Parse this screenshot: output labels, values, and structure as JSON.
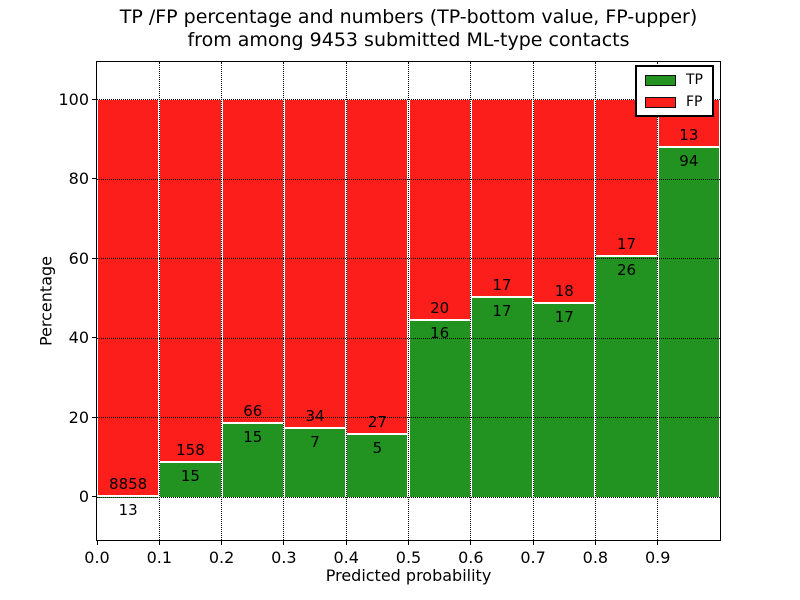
{
  "title": {
    "line1": "TP /FP percentage and numbers (TP-bottom value, FP-upper)",
    "line2": "from among 9453 submitted ML-type contacts"
  },
  "axes": {
    "xlabel": "Predicted probability",
    "ylabel": "Percentage",
    "xticks": [
      "0.0",
      "0.1",
      "0.2",
      "0.3",
      "0.4",
      "0.5",
      "0.6",
      "0.7",
      "0.8",
      "0.9"
    ],
    "yticks": [
      0,
      20,
      40,
      60,
      80,
      100
    ],
    "xlim": [
      0.0,
      1.0
    ],
    "ylim": [
      -10.8,
      109.5
    ],
    "grid": "dotted"
  },
  "legend": {
    "position": "upper right",
    "items": [
      {
        "label": "TP",
        "series_index": 0
      },
      {
        "label": "FP",
        "series_index": 1
      }
    ]
  },
  "chart_data": {
    "type": "bar",
    "stacked": true,
    "bars_normalized_to_percent": true,
    "total_contacts": 9453,
    "bin_edges": [
      0.0,
      0.1,
      0.2,
      0.3,
      0.4,
      0.5,
      0.6,
      0.7,
      0.8,
      0.9,
      1.0
    ],
    "categories": [
      "0.0-0.1",
      "0.1-0.2",
      "0.2-0.3",
      "0.3-0.4",
      "0.4-0.5",
      "0.5-0.6",
      "0.6-0.7",
      "0.7-0.8",
      "0.8-0.9",
      "0.9-1.0"
    ],
    "series": [
      {
        "name": "TP",
        "color": "#229220",
        "values": [
          13,
          15,
          15,
          7,
          5,
          16,
          17,
          17,
          26,
          94
        ]
      },
      {
        "name": "FP",
        "color": "#fc1e1a",
        "values": [
          8858,
          158,
          66,
          34,
          27,
          20,
          17,
          18,
          17,
          13
        ]
      }
    ],
    "tp_percent_of_bin": [
      0.15,
      8.67,
      18.52,
      17.07,
      15.63,
      44.44,
      50.0,
      48.57,
      60.47,
      87.85
    ]
  }
}
